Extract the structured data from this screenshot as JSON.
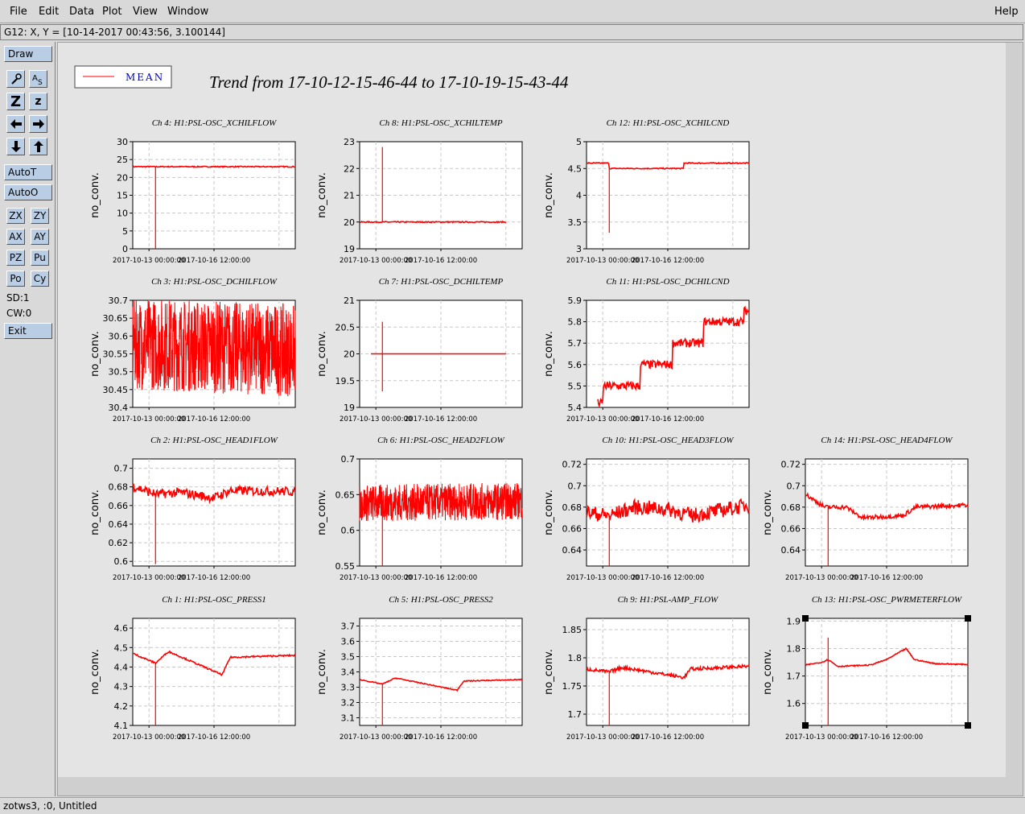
{
  "menu": {
    "file": "File",
    "edit": "Edit",
    "data": "Data",
    "plot": "Plot",
    "view": "View",
    "window": "Window",
    "help": "Help"
  },
  "coord_readout": "G12: X, Y = [10-14-2017 00:43:56, 3.100144]",
  "toolbar": {
    "draw": "Draw",
    "zoom_label_z": "Z",
    "zoom_small_z": "z",
    "autot": "AutoT",
    "autoo": "AutoO",
    "zx": "ZX",
    "zy": "ZY",
    "ax": "AX",
    "ay": "AY",
    "pz": "PZ",
    "pu": "Pu",
    "po": "Po",
    "cy": "Cy",
    "sd": "SD:1",
    "cw": "CW:0",
    "exit": "Exit"
  },
  "legend": {
    "label": "MEAN"
  },
  "title": "Trend from 17-10-12-15-46-44 to 17-10-19-15-43-44",
  "status": "zotws3, :0, Untitled",
  "colors": {
    "trace": "#ff0000",
    "plot_bg": "#ffffff",
    "canvas_bg": "#e4e4e4",
    "grid": "#c8c8c8"
  },
  "x_tick_labels": [
    "2017-10-13 00:00:00",
    "2017-10-16 12:00:00"
  ],
  "chart_data": [
    {
      "type": "line",
      "title": "Ch 4: H1:PSL-OSC_XCHILFLOW",
      "ylabel": "no_conv.",
      "ylim": [
        0,
        30
      ],
      "yticks": [
        "0",
        "5",
        "10",
        "15",
        "20",
        "25",
        "30"
      ],
      "shape": "flat",
      "level": 23,
      "noise": 0.15,
      "spike": {
        "at": 0.14,
        "to": 0
      }
    },
    {
      "type": "line",
      "title": "Ch 8: H1:PSL-OSC_XCHILTEMP",
      "ylabel": "no_conv.",
      "ylim": [
        19,
        23
      ],
      "yticks": [
        "19",
        "20",
        "21",
        "22",
        "23"
      ],
      "shape": "flat",
      "level": 20,
      "noise": 0.02,
      "spike": {
        "at": 0.14,
        "to": 22.8
      },
      "end": 0.9
    },
    {
      "type": "line",
      "title": "Ch 12: H1:PSL-OSC_XCHILCND",
      "ylabel": "no_conv.",
      "ylim": [
        3,
        5
      ],
      "yticks": [
        "3",
        "3.5",
        "4",
        "4.5",
        "5"
      ],
      "shape": "steps",
      "levels": [
        [
          0,
          4.6
        ],
        [
          0.14,
          4.5
        ],
        [
          0.6,
          4.6
        ]
      ],
      "noise": 0.01,
      "spike": {
        "at": 0.14,
        "to": 3.3
      }
    },
    {
      "type": "line",
      "title": "Ch 3: H1:PSL-OSC_DCHILFLOW",
      "ylabel": "no_conv.",
      "ylim": [
        30.4,
        30.7
      ],
      "yticks": [
        "30.4",
        "30.45",
        "30.5",
        "30.55",
        "30.6",
        "30.65",
        "30.7"
      ],
      "shape": "band",
      "level": 30.58,
      "trend": -0.02,
      "noise": 0.1
    },
    {
      "type": "line",
      "title": "Ch 7: H1:PSL-OSC_DCHILTEMP",
      "ylabel": "no_conv.",
      "ylim": [
        19,
        21
      ],
      "yticks": [
        "19",
        "19.5",
        "20",
        "20.5",
        "21"
      ],
      "shape": "flat",
      "level": 20,
      "noise": 0.0,
      "spike": {
        "at": 0.14,
        "to": 20.6,
        "low": 19.3
      },
      "start": 0.07,
      "end": 0.9
    },
    {
      "type": "line",
      "title": "Ch 11: H1:PSL-OSC_DCHILCND",
      "ylabel": "no_conv.",
      "ylim": [
        5.4,
        5.9
      ],
      "yticks": [
        "5.4",
        "5.5",
        "5.6",
        "5.7",
        "5.8",
        "5.9"
      ],
      "shape": "steps",
      "levels": [
        [
          0.07,
          5.42
        ],
        [
          0.1,
          5.5
        ],
        [
          0.33,
          5.6
        ],
        [
          0.53,
          5.7
        ],
        [
          0.72,
          5.8
        ],
        [
          0.97,
          5.85
        ]
      ],
      "noise": 0.02,
      "start": 0.07
    },
    {
      "type": "line",
      "title": "Ch 2: H1:PSL-OSC_HEAD1FLOW",
      "ylabel": "no_conv.",
      "ylim": [
        0.595,
        0.71
      ],
      "yticks": [
        "0.6",
        "0.62",
        "0.64",
        "0.66",
        "0.68",
        "0.7"
      ],
      "shape": "wavy",
      "points": [
        [
          0,
          0.681
        ],
        [
          0.14,
          0.672
        ],
        [
          0.3,
          0.674
        ],
        [
          0.5,
          0.668
        ],
        [
          0.6,
          0.676
        ],
        [
          1,
          0.675
        ]
      ],
      "noise": 0.005,
      "spike": {
        "at": 0.14,
        "to": 0.597
      }
    },
    {
      "type": "line",
      "title": "Ch 6: H1:PSL-OSC_HEAD2FLOW",
      "ylabel": "no_conv.",
      "ylim": [
        0.55,
        0.7
      ],
      "yticks": [
        "0.55",
        "0.6",
        "0.65",
        "0.7"
      ],
      "shape": "band",
      "level": 0.638,
      "trend": 0.003,
      "noise": 0.02,
      "spike": {
        "at": 0.14,
        "to": 0.55
      }
    },
    {
      "type": "line",
      "title": "Ch 10: H1:PSL-OSC_HEAD3FLOW",
      "ylabel": "no_conv.",
      "ylim": [
        0.625,
        0.725
      ],
      "yticks": [
        "0.64",
        "0.66",
        "0.68",
        "0.7",
        "0.72"
      ],
      "shape": "wavy",
      "points": [
        [
          0,
          0.675
        ],
        [
          0.14,
          0.672
        ],
        [
          0.3,
          0.68
        ],
        [
          0.5,
          0.678
        ],
        [
          0.65,
          0.672
        ],
        [
          1,
          0.682
        ]
      ],
      "noise": 0.007,
      "spike": {
        "at": 0.14,
        "to": 0.625
      }
    },
    {
      "type": "line",
      "title": "Ch 14: H1:PSL-OSC_HEAD4FLOW",
      "ylabel": "no_conv.",
      "ylim": [
        0.625,
        0.725
      ],
      "yticks": [
        "0.64",
        "0.66",
        "0.68",
        "0.7",
        "0.72"
      ],
      "shape": "wavy",
      "points": [
        [
          0,
          0.692
        ],
        [
          0.12,
          0.68
        ],
        [
          0.25,
          0.68
        ],
        [
          0.35,
          0.67
        ],
        [
          0.6,
          0.672
        ],
        [
          0.68,
          0.68
        ],
        [
          1,
          0.682
        ]
      ],
      "noise": 0.002,
      "spike": {
        "at": 0.14,
        "to": 0.625
      }
    },
    {
      "type": "line",
      "title": "Ch 1: H1:PSL-OSC_PRESS1",
      "ylabel": "no_conv.",
      "ylim": [
        4.1,
        4.65
      ],
      "yticks": [
        "4.1",
        "4.2",
        "4.3",
        "4.4",
        "4.5",
        "4.6"
      ],
      "shape": "wavy",
      "points": [
        [
          0,
          4.47
        ],
        [
          0.14,
          4.42
        ],
        [
          0.22,
          4.48
        ],
        [
          0.55,
          4.36
        ],
        [
          0.6,
          4.45
        ],
        [
          1,
          4.46
        ]
      ],
      "noise": 0.004,
      "spike": {
        "at": 0.14,
        "to": 4.1
      }
    },
    {
      "type": "line",
      "title": "Ch 5: H1:PSL-OSC_PRESS2",
      "ylabel": "no_conv.",
      "ylim": [
        3.05,
        3.75
      ],
      "yticks": [
        "3.1",
        "3.2",
        "3.3",
        "3.4",
        "3.5",
        "3.6",
        "3.7"
      ],
      "shape": "wavy",
      "points": [
        [
          0,
          3.35
        ],
        [
          0.14,
          3.32
        ],
        [
          0.22,
          3.36
        ],
        [
          0.6,
          3.28
        ],
        [
          0.64,
          3.34
        ],
        [
          1,
          3.35
        ]
      ],
      "noise": 0.003,
      "spike": {
        "at": 0.14,
        "to": 3.05
      }
    },
    {
      "type": "line",
      "title": "Ch 9: H1:PSL-AMP_FLOW",
      "ylabel": "no_conv.",
      "ylim": [
        1.68,
        1.87
      ],
      "yticks": [
        "1.7",
        "1.75",
        "1.8",
        "1.85"
      ],
      "shape": "wavy",
      "points": [
        [
          0,
          1.78
        ],
        [
          0.14,
          1.775
        ],
        [
          0.22,
          1.783
        ],
        [
          0.6,
          1.765
        ],
        [
          0.64,
          1.78
        ],
        [
          1,
          1.785
        ]
      ],
      "noise": 0.003,
      "spike": {
        "at": 0.14,
        "to": 1.68
      }
    },
    {
      "type": "line",
      "title": "Ch 13: H1:PSL-OSC_PWRMETERFLOW",
      "ylabel": "no_conv.",
      "ylim": [
        1.52,
        1.91
      ],
      "yticks": [
        "1.6",
        "1.7",
        "1.8",
        "1.9"
      ],
      "shape": "wavy",
      "points": [
        [
          0,
          1.74
        ],
        [
          0.1,
          1.75
        ],
        [
          0.14,
          1.76
        ],
        [
          0.2,
          1.735
        ],
        [
          0.4,
          1.74
        ],
        [
          0.5,
          1.76
        ],
        [
          0.62,
          1.8
        ],
        [
          0.67,
          1.76
        ],
        [
          0.8,
          1.745
        ],
        [
          1,
          1.742
        ]
      ],
      "noise": 0.002,
      "spike": {
        "at": 0.14,
        "to": 1.84,
        "low": 1.52
      },
      "selected": true
    }
  ]
}
